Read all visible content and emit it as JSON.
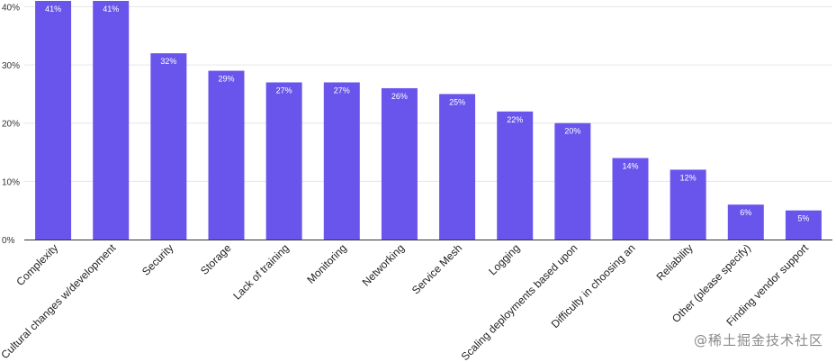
{
  "chart_data": {
    "type": "bar",
    "categories": [
      "Complexity",
      "Cultural changes w/development",
      "Security",
      "Storage",
      "Lack of training",
      "Monitoring",
      "Networking",
      "Service Mesh",
      "Logging",
      "Scaling deployments based upon",
      "Difficulty in choosing an",
      "Reliability",
      "Other (please specify)",
      "Finding vendor support"
    ],
    "values": [
      41,
      41,
      32,
      29,
      27,
      27,
      26,
      25,
      22,
      20,
      14,
      12,
      6,
      5
    ],
    "value_labels": [
      "41%",
      "41%",
      "32%",
      "29%",
      "27%",
      "27%",
      "26%",
      "25%",
      "22%",
      "20%",
      "14%",
      "12%",
      "6%",
      "5%"
    ],
    "y_ticks": [
      0,
      10,
      20,
      30,
      40
    ],
    "y_tick_labels": [
      "0%",
      "10%",
      "20%",
      "30%",
      "40%"
    ],
    "ylim": [
      0,
      41
    ],
    "grid": true,
    "bar_color": "#6955ec",
    "gridline_color": "#e6e6e6",
    "axis_color": "#333333"
  },
  "watermark": "@稀土掘金技术社区"
}
